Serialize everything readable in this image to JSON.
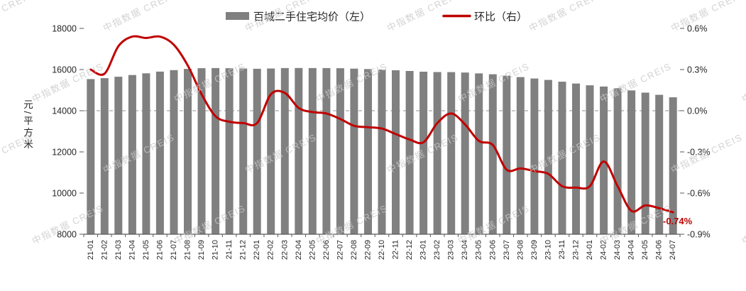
{
  "chart_data": {
    "type": "bar+line",
    "title": "",
    "watermark": "中指数据 CREIS",
    "categories": [
      "21-01",
      "21-02",
      "21-03",
      "21-04",
      "21-05",
      "21-06",
      "21-07",
      "21-08",
      "21-09",
      "21-10",
      "21-11",
      "21-12",
      "22-01",
      "22-02",
      "22-03",
      "22-04",
      "22-05",
      "22-06",
      "22-07",
      "22-08",
      "22-09",
      "22-10",
      "22-11",
      "22-12",
      "23-01",
      "23-02",
      "23-03",
      "23-04",
      "23-05",
      "23-06",
      "23-07",
      "23-08",
      "23-09",
      "23-10",
      "23-11",
      "23-12",
      "24-01",
      "24-02",
      "24-03",
      "24-04",
      "24-05",
      "24-06",
      "24-07"
    ],
    "series": [
      {
        "name": "百城二手住宅均价（左）",
        "type": "bar",
        "axis": "left",
        "color": "#808080",
        "values": [
          15539,
          15582,
          15652,
          15734,
          15817,
          15901,
          15974,
          16032,
          16067,
          16073,
          16064,
          16051,
          16037,
          16053,
          16072,
          16075,
          16073,
          16072,
          16064,
          16046,
          16025,
          16000,
          15966,
          15931,
          15896,
          15880,
          15877,
          15855,
          15815,
          15771,
          15702,
          15634,
          15566,
          15496,
          15409,
          15321,
          15235,
          15177,
          15092,
          14986,
          14881,
          14774,
          14653
        ]
      },
      {
        "name": "环比（右）",
        "type": "line",
        "axis": "right",
        "color": "#c00000",
        "values": [
          0.3,
          0.27,
          0.47,
          0.54,
          0.53,
          0.54,
          0.48,
          0.33,
          0.12,
          -0.04,
          -0.08,
          -0.09,
          -0.09,
          0.12,
          0.13,
          0.02,
          -0.01,
          -0.02,
          -0.06,
          -0.11,
          -0.12,
          -0.13,
          -0.17,
          -0.21,
          -0.23,
          -0.09,
          -0.02,
          -0.1,
          -0.22,
          -0.25,
          -0.43,
          -0.42,
          -0.44,
          -0.46,
          -0.55,
          -0.56,
          -0.55,
          -0.37,
          -0.55,
          -0.73,
          -0.69,
          -0.71,
          -0.74
        ]
      }
    ],
    "left_axis": {
      "label": "元/平方米",
      "min": 8000,
      "max": 18000,
      "ticks": [
        "18000",
        "16000",
        "14000",
        "12000",
        "10000",
        "8000"
      ]
    },
    "right_axis": {
      "min": -0.9,
      "max": 0.6,
      "ticks": [
        "0.6%",
        "0.3%",
        "0.0%",
        "-0.3%",
        "-0.6%",
        "-0.9%"
      ],
      "zero_line_dashed": true
    },
    "legend": [
      {
        "label": "百城二手住宅均价（左）"
      },
      {
        "label": "环比（右）"
      }
    ],
    "annotation": {
      "text": "-0.74%",
      "color": "#c00000"
    },
    "grid": "zero-line-only",
    "legend_position": "top-center"
  }
}
